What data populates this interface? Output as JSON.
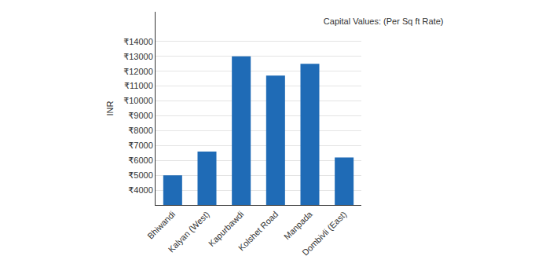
{
  "chart_data": {
    "type": "bar",
    "title": "Capital Values: (Per Sq ft Rate)",
    "y_label": "INR",
    "categories": [
      "Bhiwandi",
      "Kalyan (West)",
      "Kapurbawdi",
      "Kolshet Road",
      "Manpada",
      "Dombivli (East)"
    ],
    "values": [
      5000,
      6600,
      13000,
      11700,
      12500,
      6200
    ],
    "color": "#1f6bb6",
    "ylim": [
      3000,
      16000
    ],
    "yticks": [
      {
        "value": 4000,
        "label": "₹4000"
      },
      {
        "value": 5000,
        "label": "₹5000"
      },
      {
        "value": 6000,
        "label": "₹6000"
      },
      {
        "value": 7000,
        "label": "₹7000"
      },
      {
        "value": 8000,
        "label": "₹8000"
      },
      {
        "value": 9000,
        "label": "₹9000"
      },
      {
        "value": 10000,
        "label": "₹10000"
      },
      {
        "value": 11000,
        "label": "₹11000"
      },
      {
        "value": 12000,
        "label": "₹12000"
      },
      {
        "value": 13000,
        "label": "₹13000"
      },
      {
        "value": 14000,
        "label": "₹14000"
      }
    ],
    "grid": true
  }
}
